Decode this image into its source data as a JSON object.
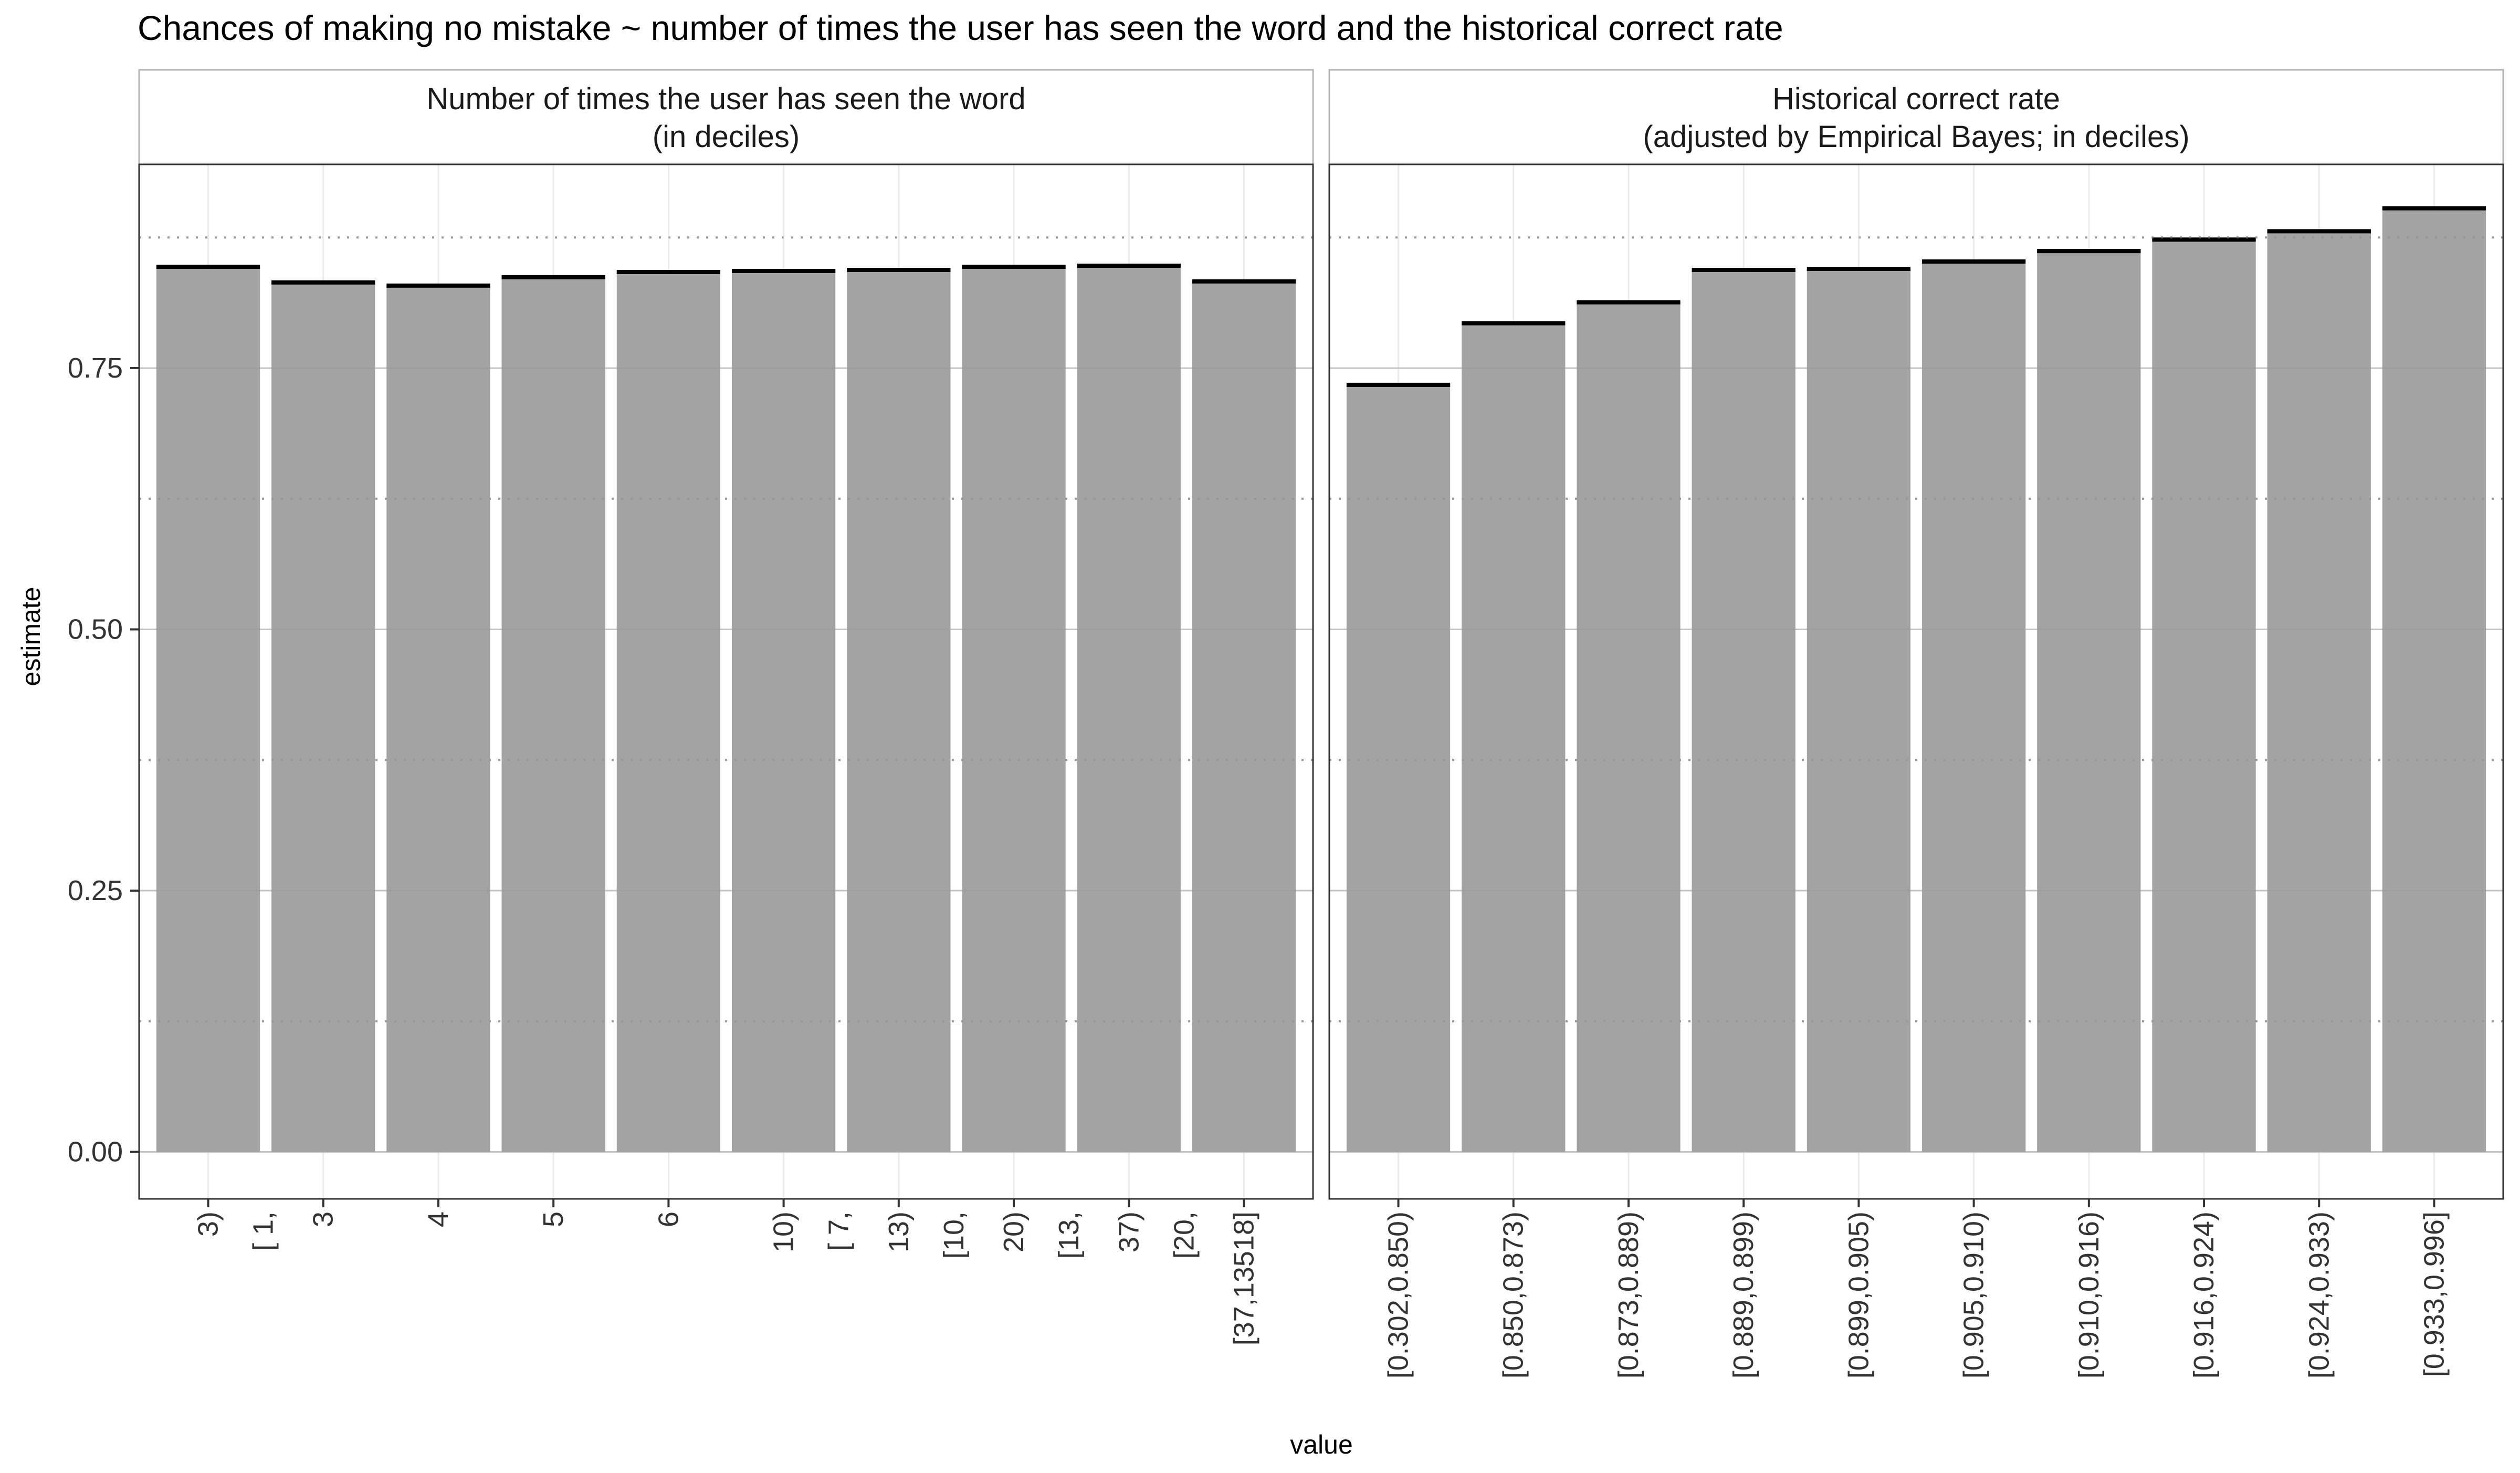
{
  "chart_data": {
    "type": "bar",
    "title": "Chances of making no mistake ~ number of times the user has seen the word and the historical correct rate",
    "xlabel": "value",
    "ylabel": "estimate",
    "ylim": [
      -0.045,
      0.945
    ],
    "y_ticks": [
      0.0,
      0.25,
      0.5,
      0.75
    ],
    "y_tick_labels": [
      "0.00",
      "0.25",
      "0.50",
      "0.75"
    ],
    "minor_gridlines_dotted": [
      0.125,
      0.375,
      0.625,
      0.875
    ],
    "grid": true,
    "bar_color": "#a3a3a3",
    "panels": [
      {
        "strip_lines": [
          "Number of times the user has seen the word",
          "(in deciles)"
        ],
        "categories": [
          [
            "3)",
            "[ 1,"
          ],
          [
            "3"
          ],
          [
            "4"
          ],
          [
            "5"
          ],
          [
            "6"
          ],
          [
            "10)",
            "[ 7,"
          ],
          [
            "13)",
            "[10,"
          ],
          [
            "20)",
            "[13,"
          ],
          [
            "37)",
            "[20,"
          ],
          [
            "[37,13518]"
          ]
        ],
        "values": [
          0.847,
          0.832,
          0.829,
          0.837,
          0.842,
          0.843,
          0.844,
          0.847,
          0.848,
          0.833
        ]
      },
      {
        "strip_lines": [
          "Historical correct rate",
          "(adjusted by Empirical Bayes; in deciles)"
        ],
        "categories": [
          [
            "[0.302,0.850)"
          ],
          [
            "[0.850,0.873)"
          ],
          [
            "[0.873,0.889)"
          ],
          [
            "[0.889,0.899)"
          ],
          [
            "[0.899,0.905)"
          ],
          [
            "[0.905,0.910)"
          ],
          [
            "[0.910,0.916)"
          ],
          [
            "[0.916,0.924)"
          ],
          [
            "[0.924,0.933)"
          ],
          [
            "[0.933,0.996]"
          ]
        ],
        "values": [
          0.734,
          0.793,
          0.813,
          0.844,
          0.845,
          0.852,
          0.862,
          0.873,
          0.881,
          0.903
        ]
      }
    ]
  }
}
